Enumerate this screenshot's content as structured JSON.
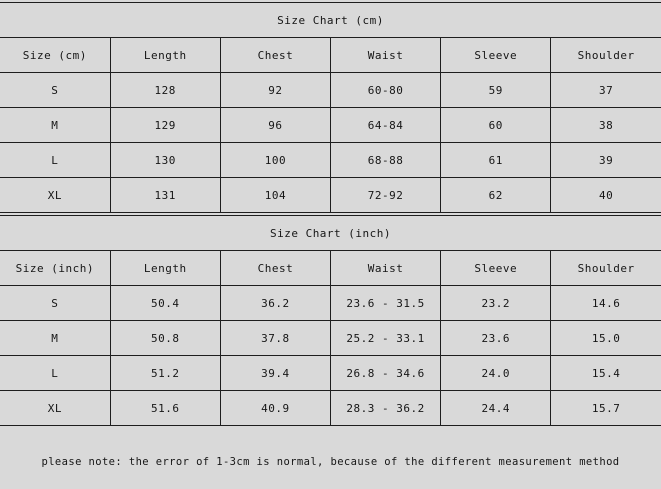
{
  "page": {
    "background_color": "#d9d9d9",
    "border_color": "#1e1e1e",
    "text_color": "#161616"
  },
  "tables": [
    {
      "title": "Size Chart (cm)",
      "headers": [
        "Size (cm)",
        "Length",
        "Chest",
        "Waist",
        "Sleeve",
        "Shoulder"
      ],
      "rows": [
        [
          "S",
          "128",
          "92",
          "60-80",
          "59",
          "37"
        ],
        [
          "M",
          "129",
          "96",
          "64-84",
          "60",
          "38"
        ],
        [
          "L",
          "130",
          "100",
          "68-88",
          "61",
          "39"
        ],
        [
          "XL",
          "131",
          "104",
          "72-92",
          "62",
          "40"
        ]
      ]
    },
    {
      "title": "Size Chart (inch)",
      "headers": [
        "Size (inch)",
        "Length",
        "Chest",
        "Waist",
        "Sleeve",
        "Shoulder"
      ],
      "rows": [
        [
          "S",
          "50.4",
          "36.2",
          "23.6 - 31.5",
          "23.2",
          "14.6"
        ],
        [
          "M",
          "50.8",
          "37.8",
          "25.2 - 33.1",
          "23.6",
          "15.0"
        ],
        [
          "L",
          "51.2",
          "39.4",
          "26.8 - 34.6",
          "24.0",
          "15.4"
        ],
        [
          "XL",
          "51.6",
          "40.9",
          "28.3 - 36.2",
          "24.4",
          "15.7"
        ]
      ]
    }
  ],
  "note": "please note: the error of 1-3cm is normal, because of the different measurement method"
}
